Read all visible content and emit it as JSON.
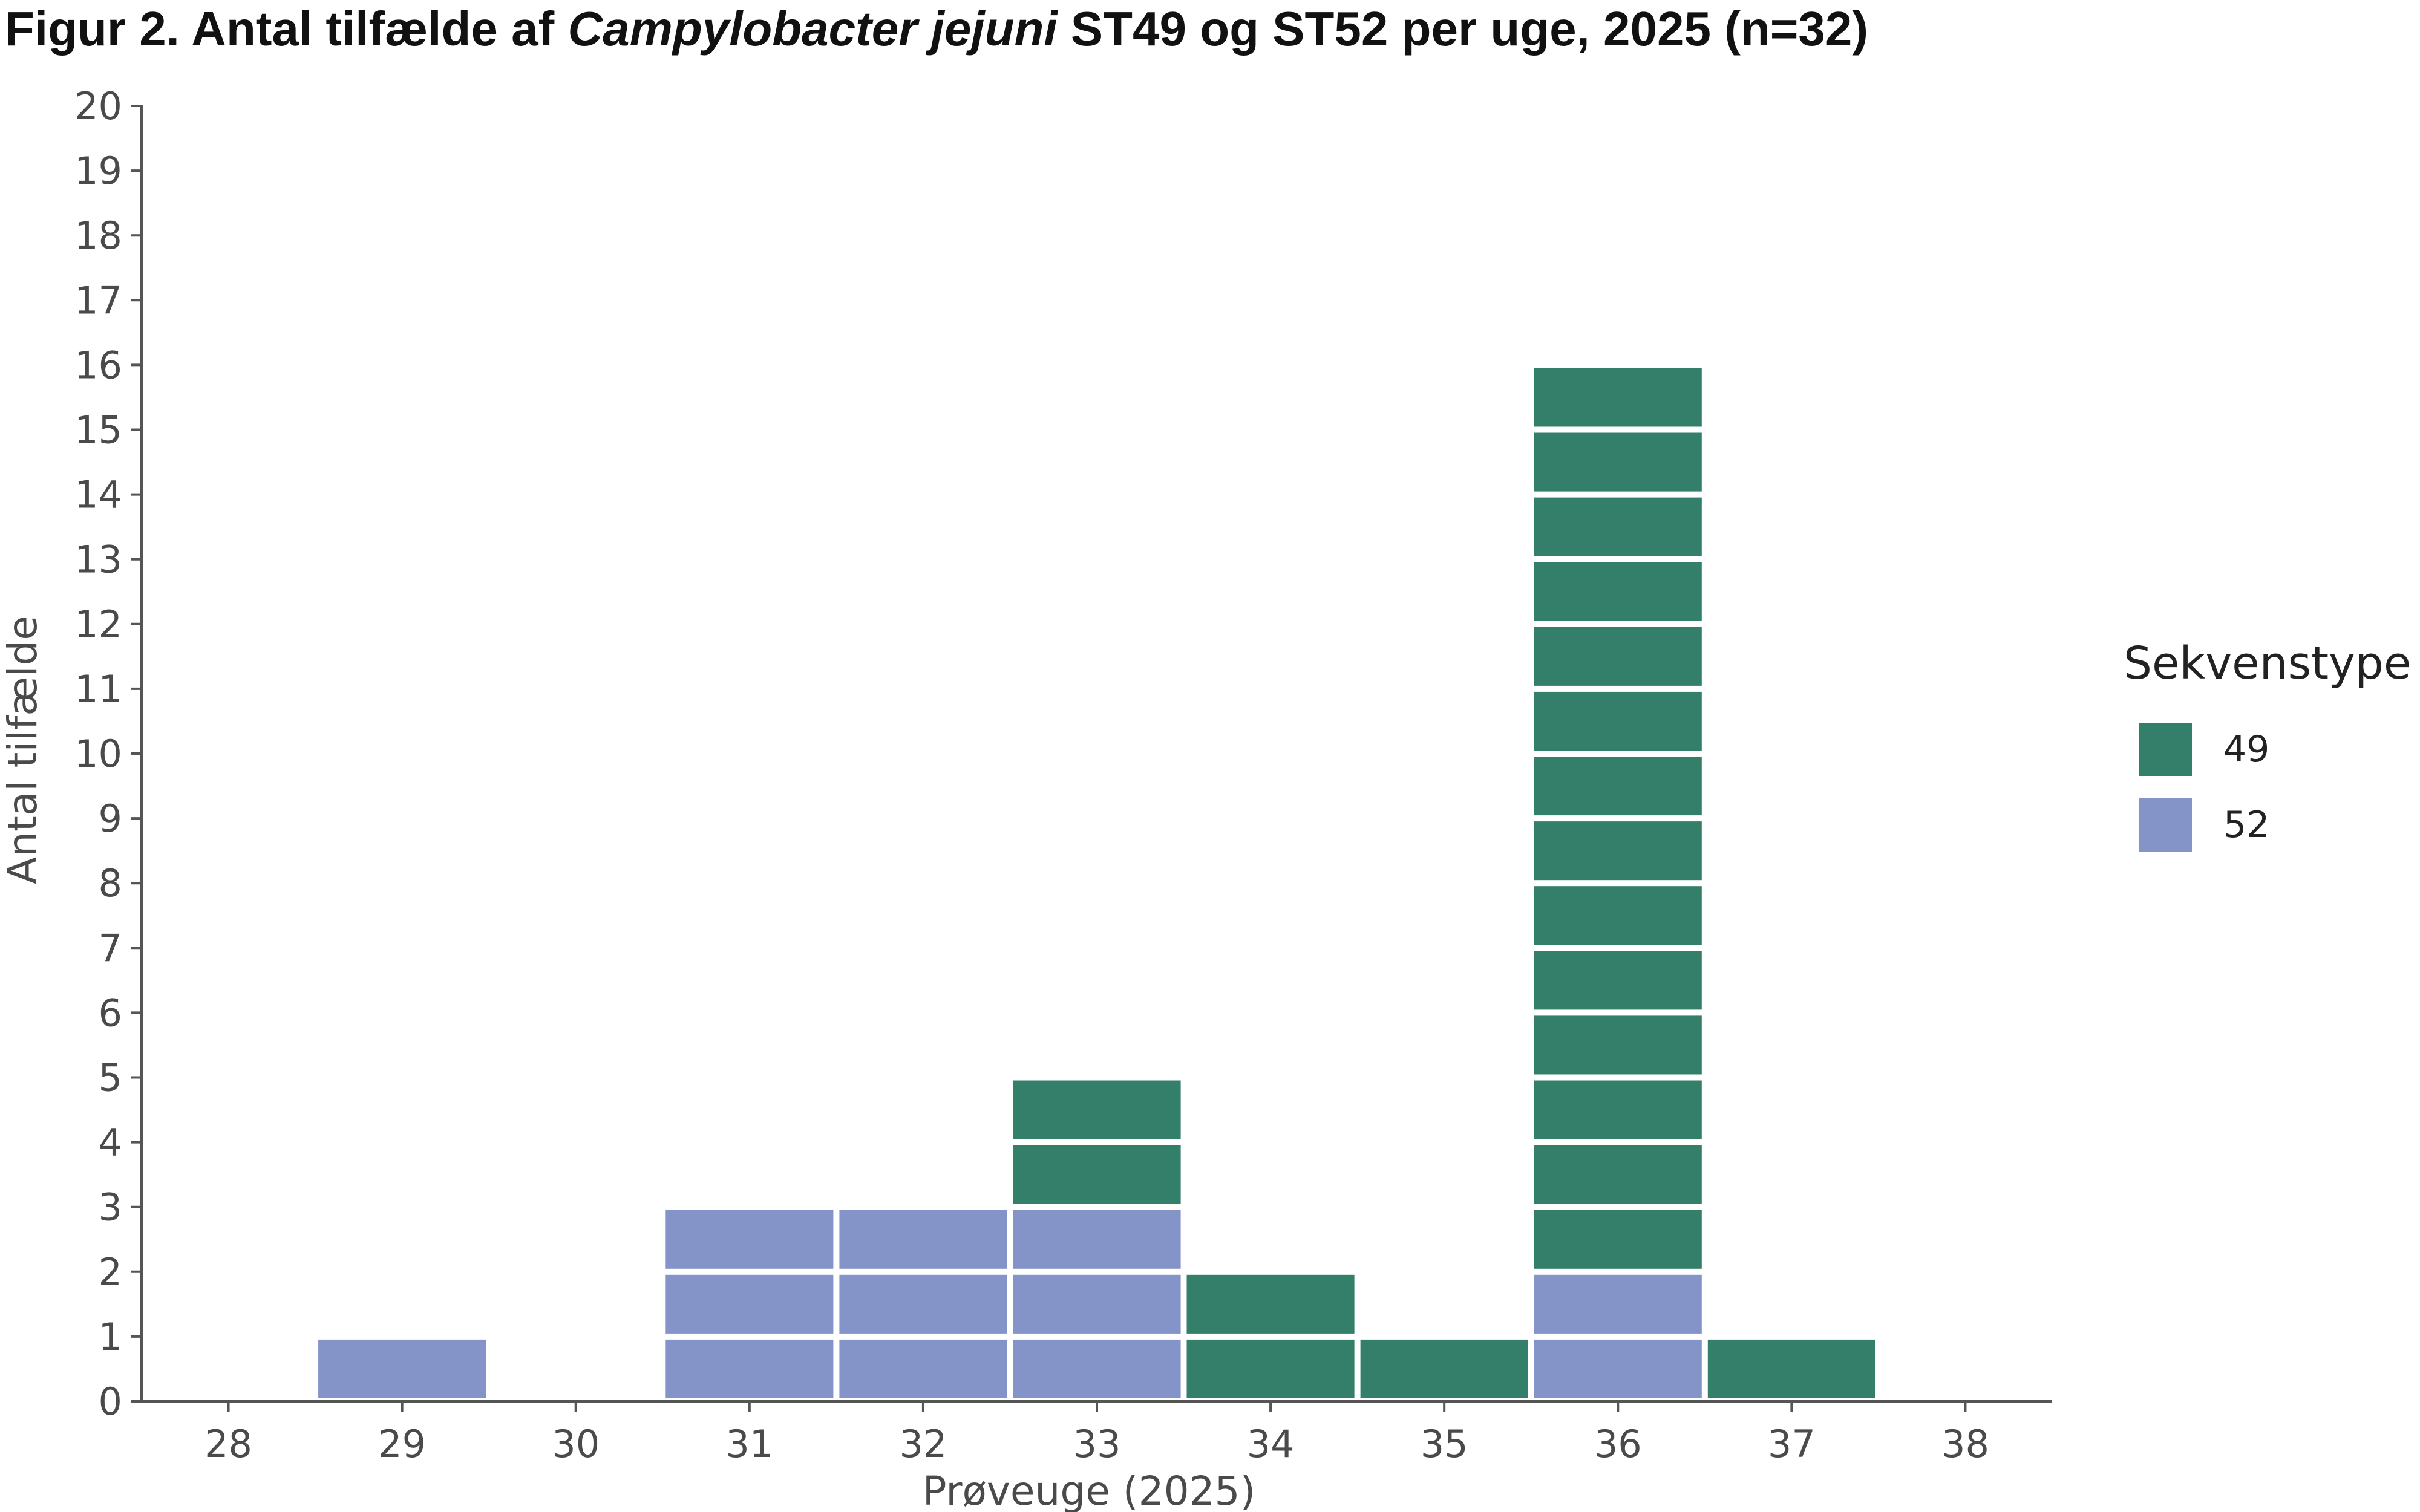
{
  "chart_data": {
    "type": "bar",
    "stacked": true,
    "unit_blocks": true,
    "title": {
      "prefix": "Figur 2. Antal tilfælde af ",
      "italic": "Campylobacter jejuni",
      "suffix": " ST49 og ST52 per uge, 2025 (n=32)"
    },
    "xlabel": "Prøveuge (2025)",
    "ylabel": "Antal tilfælde",
    "categories": [
      "28",
      "29",
      "30",
      "31",
      "32",
      "33",
      "34",
      "35",
      "36",
      "37",
      "38"
    ],
    "ylim": [
      0,
      20
    ],
    "yticks": [
      0,
      1,
      2,
      3,
      4,
      5,
      6,
      7,
      8,
      9,
      10,
      11,
      12,
      13,
      14,
      15,
      16,
      17,
      18,
      19,
      20
    ],
    "series": [
      {
        "name": "52",
        "color": "#8594c8",
        "values": [
          0,
          1,
          0,
          3,
          3,
          3,
          0,
          0,
          2,
          0,
          0
        ]
      },
      {
        "name": "49",
        "color": "#347f69",
        "values": [
          0,
          0,
          0,
          0,
          0,
          2,
          2,
          1,
          14,
          1,
          0
        ]
      }
    ],
    "legend": {
      "title": "Sekvenstype",
      "placement": "right",
      "order": [
        "49",
        "52"
      ]
    },
    "grid": false
  }
}
